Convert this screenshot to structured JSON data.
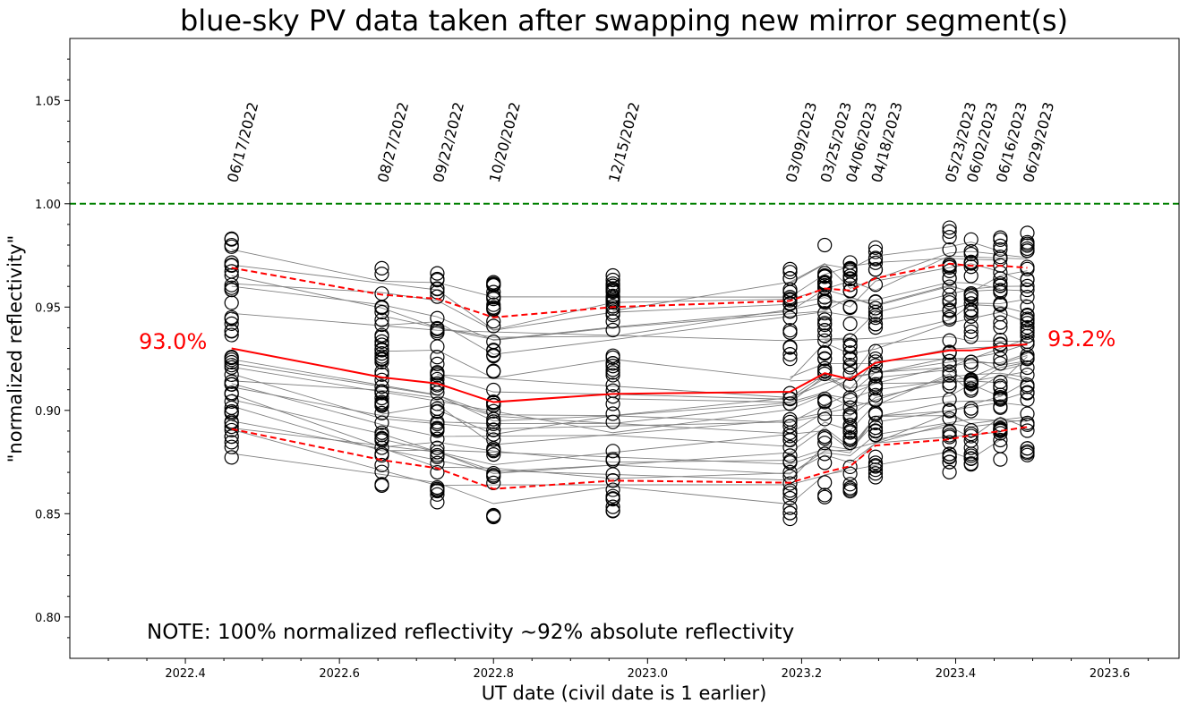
{
  "chart_data": {
    "type": "scatter",
    "title": "blue-sky PV data taken after swapping new mirror segment(s)",
    "xlabel": "UT date (civil date is 1 earlier)",
    "ylabel": "\"normalized reflectivity\"",
    "xlim": [
      2022.25,
      2023.69
    ],
    "ylim": [
      0.78,
      1.08
    ],
    "xticks": [
      "2022.4",
      "2022.6",
      "2022.8",
      "2023.0",
      "2023.2",
      "2023.4",
      "2023.6"
    ],
    "yticks": [
      "0.80",
      "0.85",
      "0.90",
      "0.95",
      "1.00",
      "1.05"
    ],
    "reference_line": {
      "y": 1.0,
      "color": "#008000",
      "style": "dashed"
    },
    "dates": [
      {
        "label": "06/17/2022",
        "x": 2022.46
      },
      {
        "label": "08/27/2022",
        "x": 2022.655
      },
      {
        "label": "09/22/2022",
        "x": 2022.727
      },
      {
        "label": "10/20/2022",
        "x": 2022.8
      },
      {
        "label": "12/15/2022",
        "x": 2022.955
      },
      {
        "label": "03/09/2023",
        "x": 2023.185
      },
      {
        "label": "03/25/2023",
        "x": 2023.23
      },
      {
        "label": "04/06/2023",
        "x": 2023.263
      },
      {
        "label": "04/18/2023",
        "x": 2023.296
      },
      {
        "label": "05/23/2023",
        "x": 2023.392
      },
      {
        "label": "06/02/2023",
        "x": 2023.42
      },
      {
        "label": "06/16/2023",
        "x": 2023.458
      },
      {
        "label": "06/29/2023",
        "x": 2023.493
      }
    ],
    "series": [
      {
        "name": "",
        "role": "median",
        "color": "#ff0000",
        "style": "solid",
        "values": [
          0.93,
          0.916,
          0.913,
          0.904,
          0.908,
          0.909,
          0.918,
          0.915,
          0.923,
          0.929,
          0.929,
          0.931,
          0.932
        ]
      },
      {
        "name": "",
        "role": "upper",
        "color": "#ff0000",
        "style": "dashed",
        "values": [
          0.969,
          0.956,
          0.954,
          0.945,
          0.95,
          0.953,
          0.959,
          0.958,
          0.964,
          0.971,
          0.97,
          0.97,
          0.969
        ]
      },
      {
        "name": "",
        "role": "lower",
        "color": "#ff0000",
        "style": "dashed",
        "values": [
          0.891,
          0.876,
          0.872,
          0.862,
          0.866,
          0.865,
          0.87,
          0.873,
          0.883,
          0.886,
          0.888,
          0.89,
          0.892
        ]
      }
    ],
    "marker_color": "#000000",
    "track_color": "#808080",
    "annotations": {
      "start_pct": "93.0%",
      "end_pct": "93.2%",
      "note": "NOTE: 100% normalized reflectivity ~92% absolute reflectivity"
    }
  }
}
